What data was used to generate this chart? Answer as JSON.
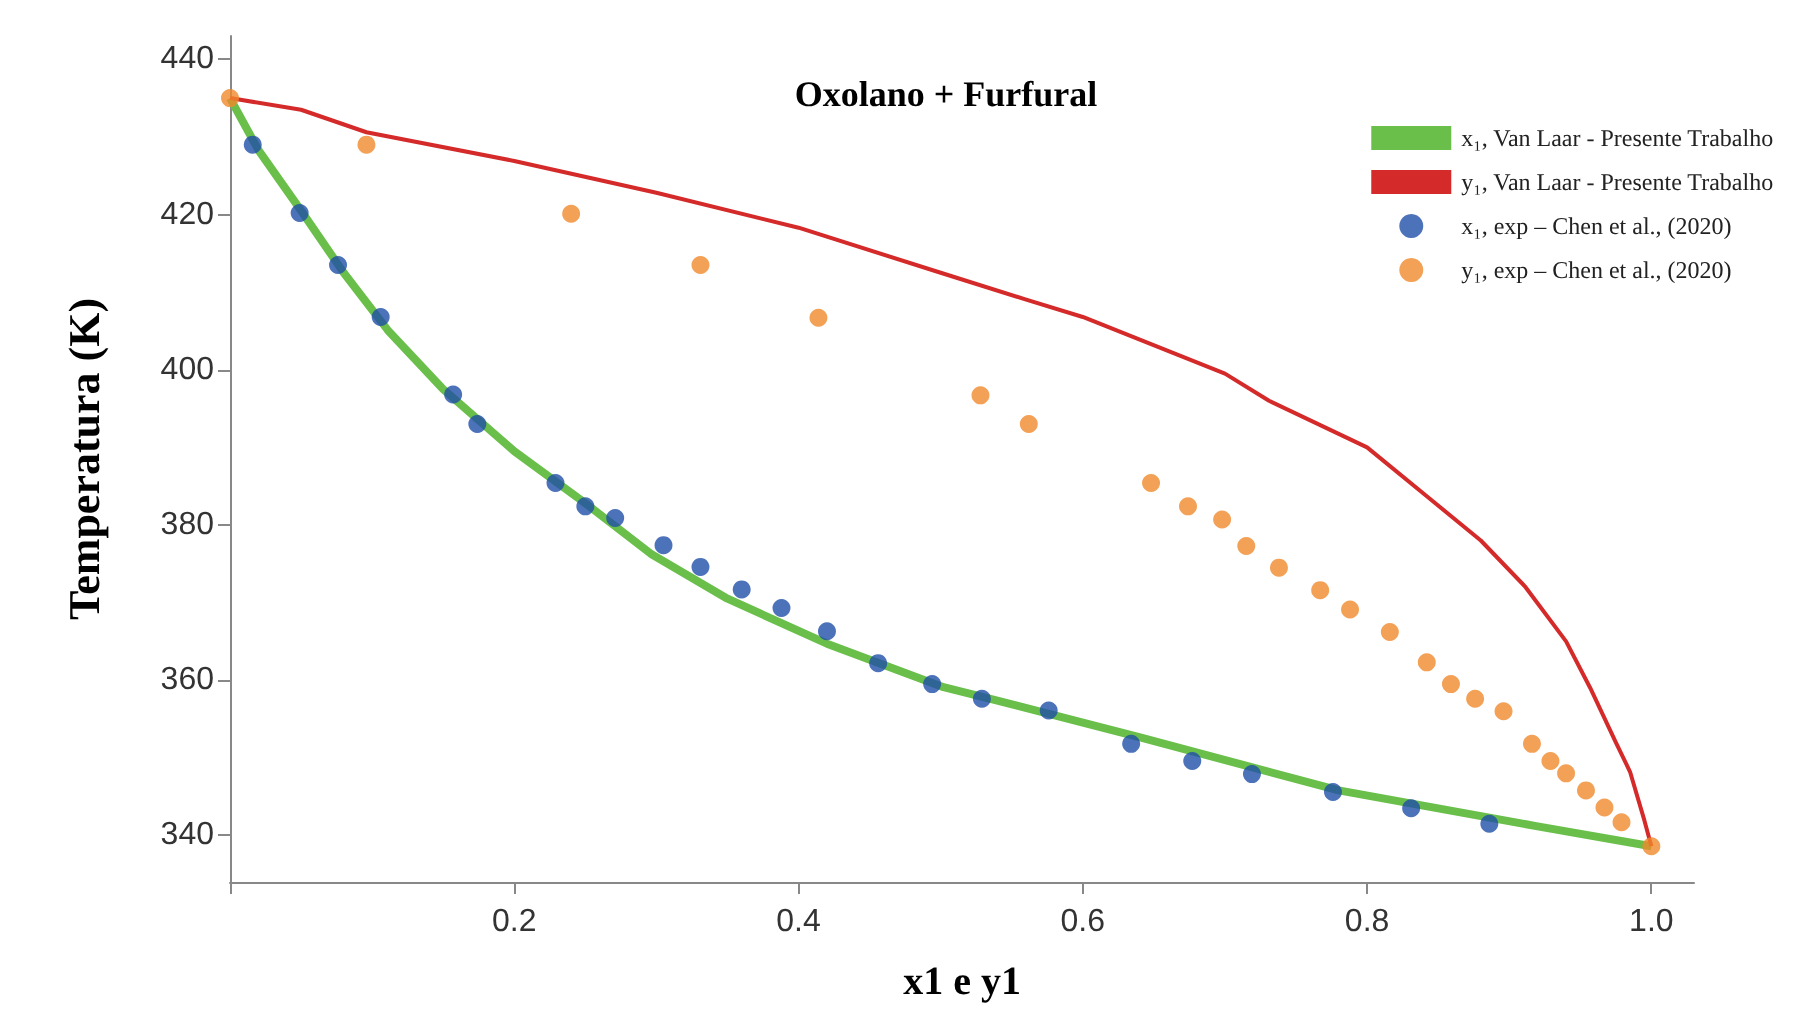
{
  "chart_data": {
    "type": "scatter",
    "title": "Oxolano + Furfural",
    "xlabel": "x1 e y1",
    "ylabel": "Temperatura (K)",
    "xlim": [
      0,
      1.03
    ],
    "xticks": [
      {
        "value": 0,
        "label": null
      },
      0.2,
      0.4,
      0.6,
      0.8,
      {
        "value": 1,
        "label": "1.0"
      }
    ],
    "ylim": [
      334,
      443
    ],
    "yticks": [
      340,
      360,
      380,
      400,
      420,
      440
    ],
    "grid": false,
    "legend": "top right",
    "series": [
      {
        "name": "x₁, Van Laar - Presente Trabalho",
        "type": "line",
        "color": "#6abf4b",
        "x": [
          0,
          0.02,
          0.05,
          0.08,
          0.111,
          0.15,
          0.2,
          0.25,
          0.296,
          0.35,
          0.42,
          0.502,
          0.535,
          0.641,
          0.78,
          0.919,
          1
        ],
        "values": [
          435,
          428.3,
          420.5,
          412.5,
          405.1,
          397.5,
          389.5,
          382.8,
          376.3,
          370.5,
          364.7,
          359.1,
          357.6,
          352.6,
          345.8,
          341.2,
          338.6
        ]
      },
      {
        "name": "y₁, Van Laar - Presente Trabalho",
        "type": "line",
        "color": "#d42a2a",
        "x": [
          0,
          0.05,
          0.096,
          0.2,
          0.3,
          0.4,
          0.5,
          0.559,
          0.6,
          0.7,
          0.731,
          0.8,
          0.842,
          0.88,
          0.911,
          0.94,
          0.957,
          0.975,
          0.985,
          0.995,
          1
        ],
        "values": [
          435,
          433.5,
          430.6,
          426.9,
          422.8,
          418.3,
          412.5,
          409.1,
          406.8,
          399.5,
          396,
          390,
          383.7,
          378,
          372.1,
          365,
          359,
          352,
          348.2,
          342,
          338.6
        ]
      },
      {
        "name": "x₁, exp – Chen et al., (2020)",
        "marker": "circle",
        "color": "#1f4fa8",
        "x": [
          0.016,
          0.049,
          0.076,
          0.106,
          0.157,
          0.174,
          0.229,
          0.25,
          0.271,
          0.305,
          0.331,
          0.36,
          0.388,
          0.42,
          0.456,
          0.494,
          0.529,
          0.576,
          0.634,
          0.677,
          0.719,
          0.776,
          0.831,
          0.886
        ],
        "values": [
          429,
          420.2,
          413.5,
          406.8,
          396.8,
          393,
          385.4,
          382.4,
          380.9,
          377.4,
          374.6,
          371.7,
          369.3,
          366.3,
          362.2,
          359.5,
          357.6,
          356.1,
          351.8,
          349.6,
          347.9,
          345.6,
          343.5,
          341.5
        ]
      },
      {
        "name": "y₁, exp – Chen et al., (2020)",
        "marker": "circle",
        "color": "#f08a2c",
        "x": [
          0,
          0.096,
          0.24,
          0.331,
          0.414,
          0.528,
          0.562,
          0.648,
          0.674,
          0.698,
          0.715,
          0.738,
          0.767,
          0.788,
          0.816,
          0.842,
          0.859,
          0.876,
          0.896,
          0.916,
          0.929,
          0.94,
          0.954,
          0.967,
          0.979,
          1
        ],
        "values": [
          435,
          429,
          420.1,
          413.5,
          406.7,
          396.7,
          393,
          385.4,
          382.4,
          380.7,
          377.3,
          374.5,
          371.6,
          369.1,
          366.2,
          362.3,
          359.5,
          357.6,
          356,
          351.8,
          349.6,
          348,
          345.8,
          343.6,
          341.7,
          338.6
        ]
      }
    ]
  }
}
